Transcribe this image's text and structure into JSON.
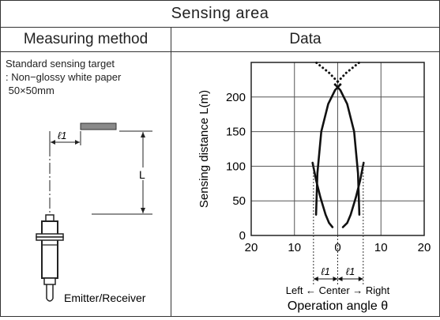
{
  "header": {
    "title": "Sensing area",
    "left_heading": "Measuring method",
    "right_heading": "Data"
  },
  "method": {
    "target_line1": "Standard sensing target",
    "target_line2": ": Non−glossy white paper",
    "target_line3": "50×50mm",
    "l1_label": "ℓ1",
    "L_label": "L",
    "device_label": "Emitter/Receiver"
  },
  "chart_data": {
    "type": "line",
    "ylabel": "Sensing distance L(m)",
    "xlabel": "Operation angle θ",
    "direction_label": "Left ← Center → Right",
    "l1_marker": "ℓ1",
    "xlim": [
      -20,
      20
    ],
    "ylim": [
      0,
      250
    ],
    "x_ticks": [
      -20,
      -10,
      0,
      10,
      20
    ],
    "x_tick_labels": [
      "20",
      "10",
      "0",
      "10",
      "20"
    ],
    "y_ticks": [
      0,
      50,
      100,
      150,
      200
    ],
    "y_tick_labels": [
      "0",
      "50",
      "100",
      "150",
      "200"
    ],
    "grid": true,
    "series": [
      {
        "style": "solid",
        "x": [
          -5.8,
          -5.0,
          -4.0,
          -2.8,
          -2.0,
          -1.2
        ],
        "y": [
          105,
          80,
          55,
          30,
          18,
          12
        ]
      },
      {
        "style": "solid",
        "x": [
          -5.0,
          -4.7,
          -3.8,
          -2.2,
          -0.6,
          0.6
        ],
        "y": [
          30,
          90,
          150,
          190,
          210,
          218
        ]
      },
      {
        "style": "solid",
        "x": [
          6.0,
          5.2,
          4.2,
          3.0,
          2.2,
          1.2
        ],
        "y": [
          105,
          80,
          55,
          30,
          18,
          12
        ]
      },
      {
        "style": "solid",
        "x": [
          5.0,
          4.7,
          3.8,
          2.2,
          0.6,
          -0.6
        ],
        "y": [
          30,
          90,
          150,
          190,
          210,
          218
        ]
      },
      {
        "style": "dotted",
        "x": [
          0.6,
          -2.0,
          -5.0
        ],
        "y": [
          218,
          235,
          250
        ]
      },
      {
        "style": "dotted",
        "x": [
          -0.6,
          2.0,
          5.0
        ],
        "y": [
          218,
          235,
          250
        ]
      }
    ]
  }
}
